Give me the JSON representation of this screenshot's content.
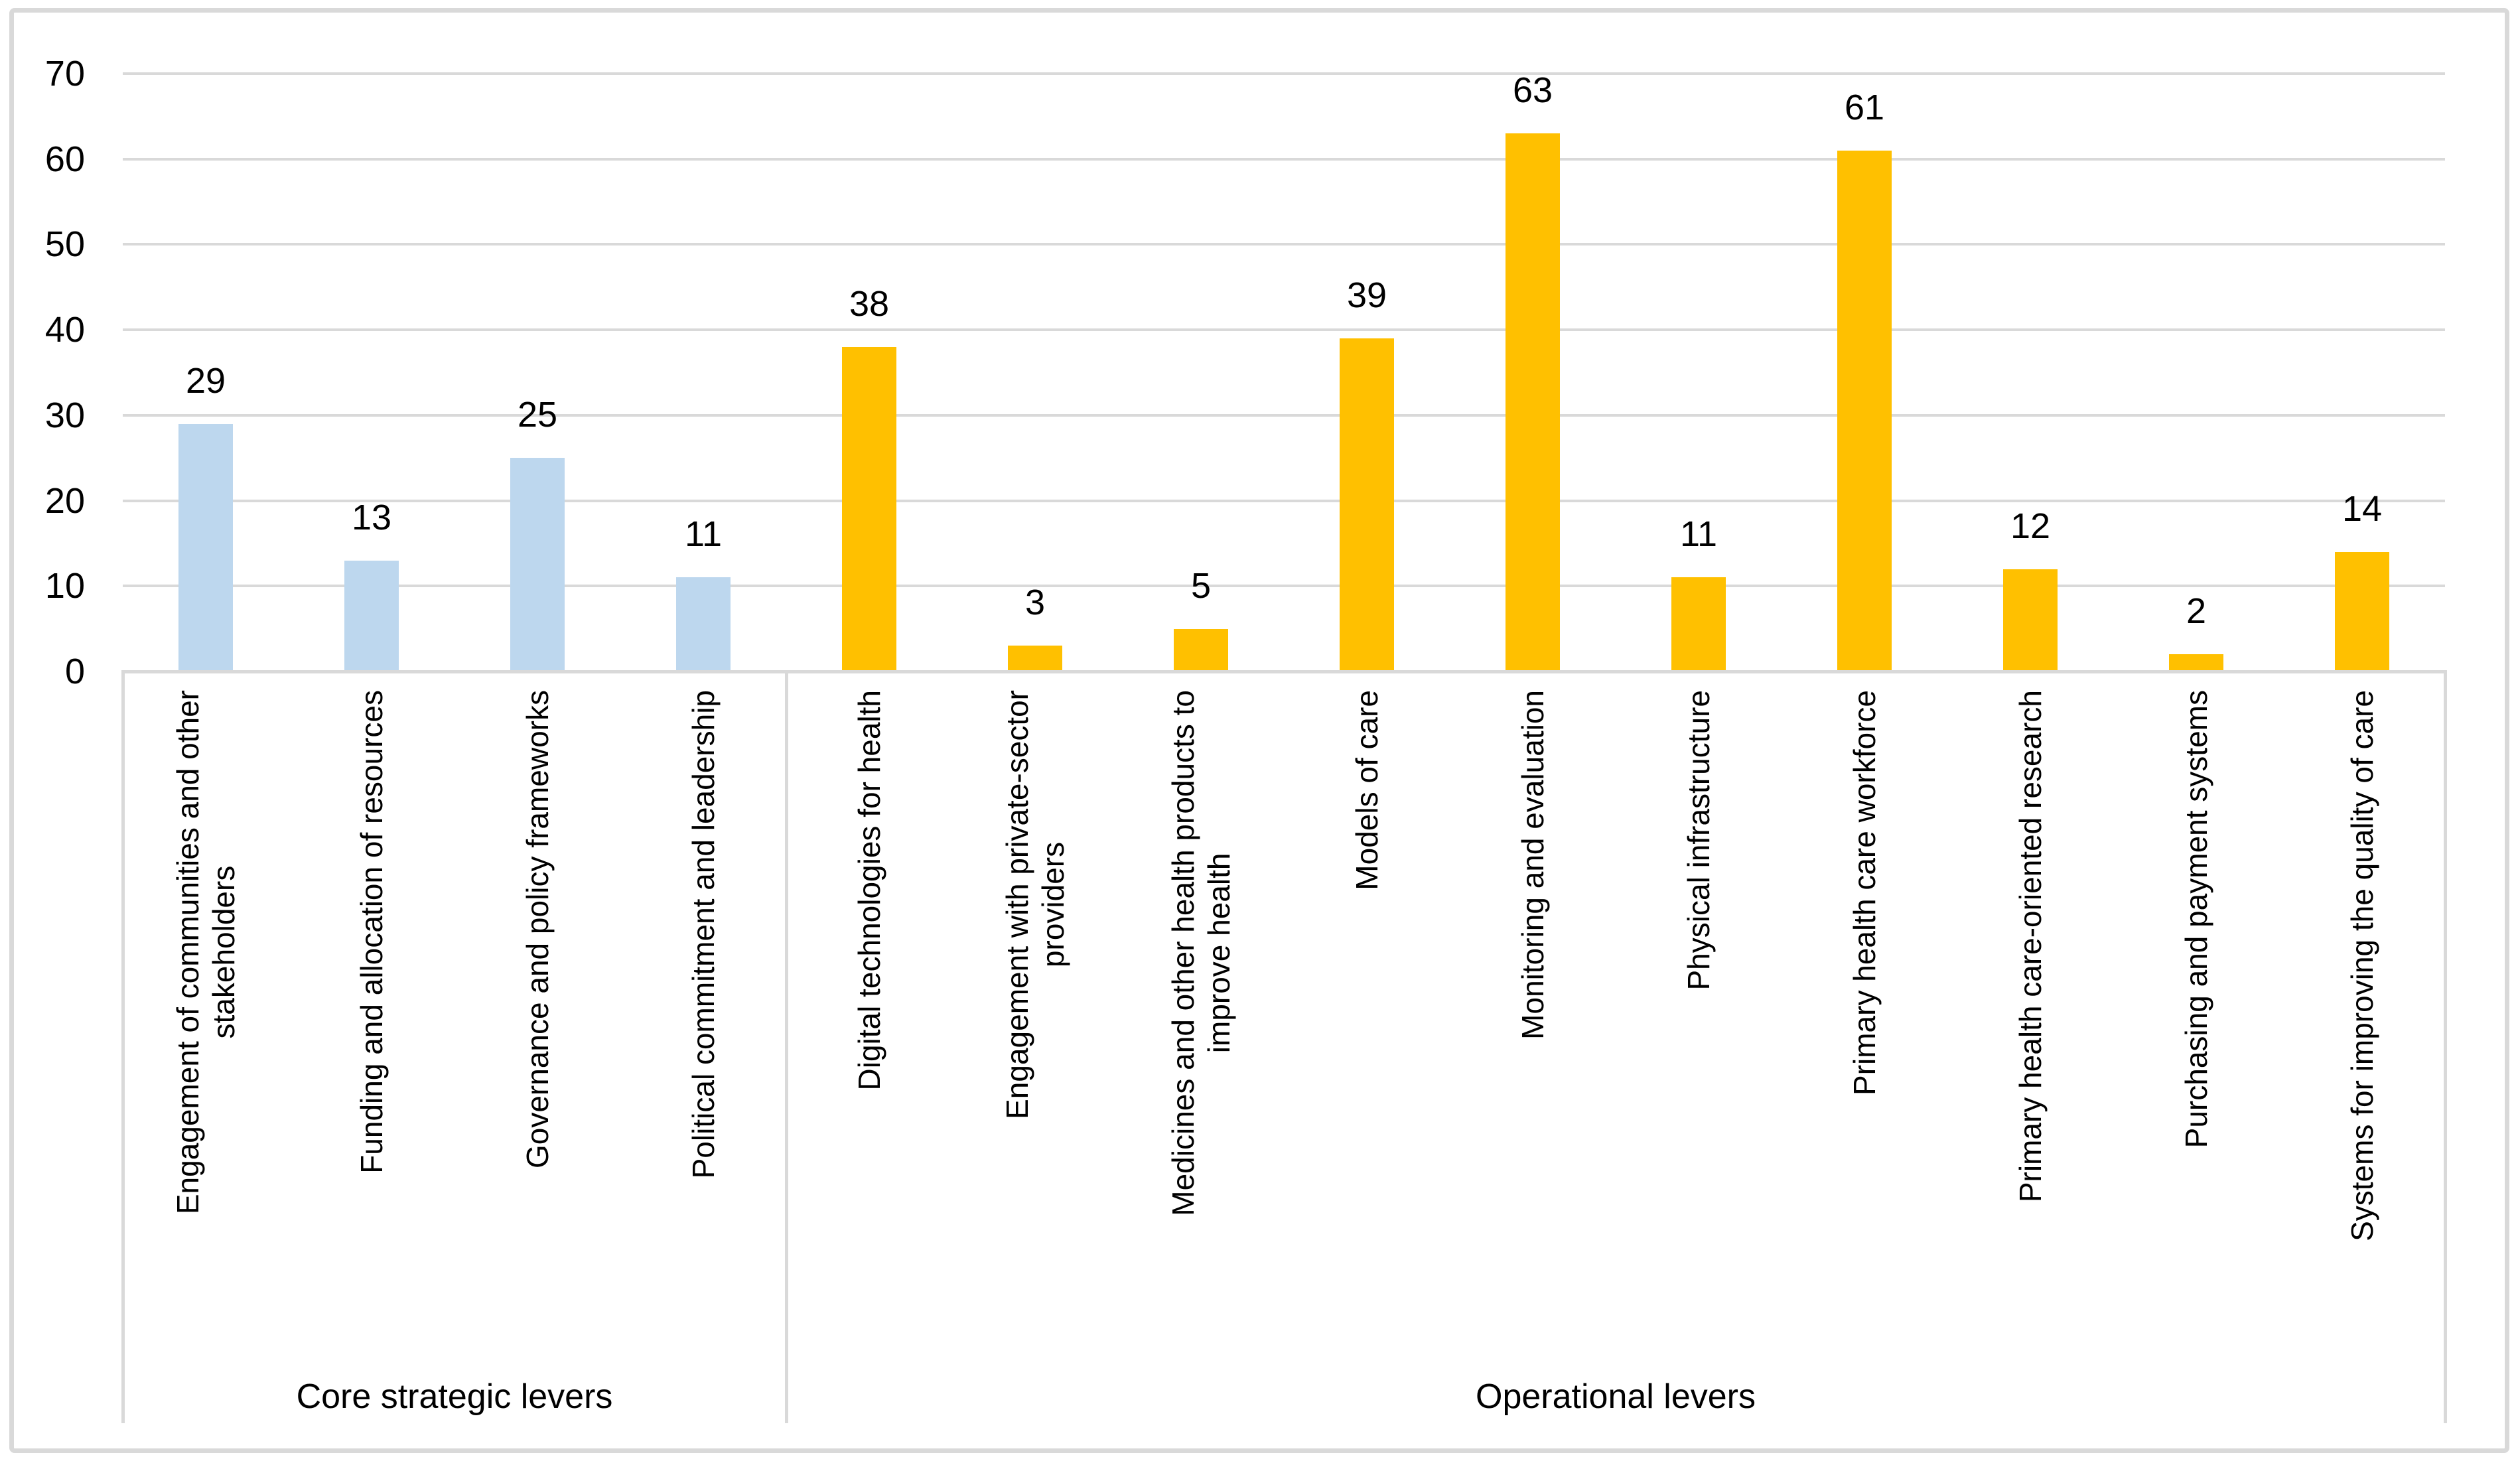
{
  "chart_data": {
    "type": "bar",
    "title": "",
    "xlabel": "",
    "ylabel": "",
    "legend": "none",
    "grid": true,
    "y_axis": {
      "min": 0,
      "max": 70,
      "tick_interval": 10,
      "ticks": [
        0,
        10,
        20,
        30,
        40,
        50,
        60,
        70
      ]
    },
    "groups": [
      {
        "label": "Core strategic levers",
        "bar_color": "#BDD7EE",
        "items": [
          {
            "label": "Engagement of communities and other stakeholders",
            "lines": [
              "Engagement of communities and other",
              "stakeholders"
            ],
            "value": 29
          },
          {
            "label": "Funding and allocation of resources",
            "lines": [
              "Funding and allocation of resources"
            ],
            "value": 13
          },
          {
            "label": "Governance and policy frameworks",
            "lines": [
              "Governance and policy frameworks"
            ],
            "value": 25
          },
          {
            "label": "Political commitment and leadership",
            "lines": [
              "Political commitment and leadership"
            ],
            "value": 11
          }
        ]
      },
      {
        "label": "Operational levers",
        "bar_color": "#FFC000",
        "items": [
          {
            "label": "Digital technologies for health",
            "lines": [
              "Digital technologies for health"
            ],
            "value": 38
          },
          {
            "label": "Engagement with private-sector providers",
            "lines": [
              "Engagement with private-sector",
              "providers"
            ],
            "value": 3
          },
          {
            "label": "Medicines and other health products to improve health",
            "lines": [
              "Medicines and other health products to",
              "improve health"
            ],
            "value": 5
          },
          {
            "label": "Models of care",
            "lines": [
              "Models of care"
            ],
            "value": 39
          },
          {
            "label": "Monitoring and evaluation",
            "lines": [
              "Monitoring and evaluation"
            ],
            "value": 63
          },
          {
            "label": "Physical infrastructure",
            "lines": [
              "Physical infrastructure"
            ],
            "value": 11
          },
          {
            "label": "Primary health care workforce",
            "lines": [
              "Primary health care workforce"
            ],
            "value": 61
          },
          {
            "label": "Primary health care-oriented research",
            "lines": [
              "Primary health care-oriented research"
            ],
            "value": 12
          },
          {
            "label": "Purchasing and payment systems",
            "lines": [
              "Purchasing and payment systems"
            ],
            "value": 2
          },
          {
            "label": "Systems for improving the quality of care",
            "lines": [
              "Systems for improving the quality of care"
            ],
            "value": 14
          }
        ]
      }
    ],
    "colors": {
      "core_bar": "#BDD7EE",
      "operational_bar": "#FFC000",
      "gridline": "#D9D9D9",
      "axis_line": "#D9D9D9",
      "frame_border": "#D9D9D9",
      "text": "#000000",
      "background": "#FFFFFF"
    }
  }
}
